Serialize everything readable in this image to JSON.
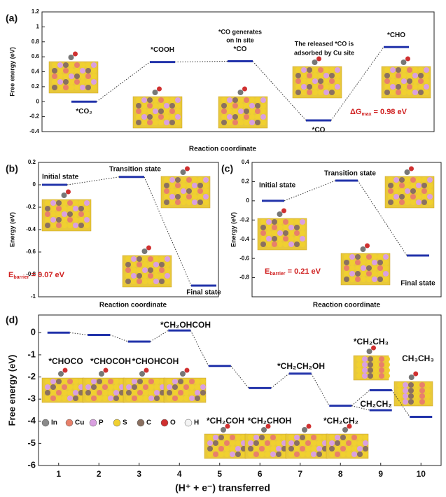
{
  "chart_data": [
    {
      "type": "energy-diagram",
      "panel_label": "(a)",
      "ylabel": "Free energy (eV)",
      "xlabel": "Reaction coordinate",
      "ylim": [
        -0.4,
        1.2
      ],
      "yticks": [
        -0.4,
        -0.2,
        0.0,
        0.2,
        0.4,
        0.6,
        0.8,
        1.0,
        1.2
      ],
      "levels": [
        {
          "value": 0.0,
          "label": "*CO₂"
        },
        {
          "value": 0.53,
          "label": "*COOH"
        },
        {
          "value": 0.54,
          "label": "*CO"
        },
        {
          "value": -0.25,
          "label": "*CO"
        },
        {
          "value": 0.73,
          "label": "*CHO"
        }
      ],
      "annotations": [
        "*CO generates",
        "on In site",
        "The released *CO is",
        "adsorbed by Cu site"
      ],
      "energy_note": {
        "main": "ΔG",
        "sub": "max",
        "rest": " = 0.98 eV"
      }
    },
    {
      "type": "energy-diagram",
      "panel_label": "(b)",
      "ylabel": "Energy (eV)",
      "xlabel": "Reaction coordinate",
      "ylim": [
        -1.0,
        0.2
      ],
      "yticks": [
        -1.0,
        -0.8,
        -0.6,
        -0.4,
        -0.2,
        0.0,
        0.2
      ],
      "levels": [
        {
          "value": 0.0,
          "label": "Initial state"
        },
        {
          "value": 0.07,
          "label": "Transition state"
        },
        {
          "value": -0.9,
          "label": "Final state"
        }
      ],
      "energy_note": {
        "main": "E",
        "sub": "barrier",
        "rest": " = 0.07 eV"
      }
    },
    {
      "type": "energy-diagram",
      "panel_label": "(c)",
      "ylabel": "Energy (eV)",
      "xlabel": "Reaction coordinate",
      "ylim": [
        -1.0,
        0.4
      ],
      "yticks": [
        -0.8,
        -0.6,
        -0.4,
        -0.2,
        0.0,
        0.2,
        0.4
      ],
      "levels": [
        {
          "value": 0.0,
          "label": "Initial state"
        },
        {
          "value": 0.21,
          "label": "Transition state"
        },
        {
          "value": -0.57,
          "label": "Final state"
        }
      ],
      "energy_note": {
        "main": "E",
        "sub": "barrier",
        "rest": " = 0.21 eV"
      }
    },
    {
      "type": "energy-diagram",
      "panel_label": "(d)",
      "ylabel": "Free energy (eV)",
      "xlabel": "(H⁺ + e⁻) transferred",
      "xlim": [
        0.5,
        10.5
      ],
      "xticks": [
        1,
        2,
        3,
        4,
        5,
        6,
        7,
        8,
        9,
        10
      ],
      "ylim": [
        -6,
        0.8
      ],
      "yticks": [
        -6,
        -5,
        -4,
        -3,
        -2,
        -1,
        0
      ],
      "levels": [
        {
          "x": 1,
          "value": 0.0,
          "label": "*CHOCO"
        },
        {
          "x": 2,
          "value": -0.1,
          "label": "*CHOCOH"
        },
        {
          "x": 3,
          "value": -0.4,
          "label": "*CHOHCOH"
        },
        {
          "x": 4,
          "value": 0.1,
          "label": "*CH₂OHCOH"
        },
        {
          "x": 5,
          "value": -1.5,
          "label": "*CH₂COH"
        },
        {
          "x": 6,
          "value": -2.5,
          "label": "*CH₂CHOH"
        },
        {
          "x": 7,
          "value": -1.85,
          "label": "*CH₂CH₂OH"
        },
        {
          "x": 8,
          "value": -3.3,
          "label": "*CH₂CH₂"
        },
        {
          "x": 9,
          "value": -2.6,
          "label": "*CH₂CH₃"
        },
        {
          "x": 9,
          "value": -3.5,
          "label": "CH₂CH₂"
        },
        {
          "x": 10,
          "value": -3.8,
          "label": "CH₃CH₃"
        }
      ],
      "legend": [
        {
          "label": "In",
          "color": "#8a8a8a"
        },
        {
          "label": "Cu",
          "color": "#e8806a"
        },
        {
          "label": "P",
          "color": "#d9a0e0"
        },
        {
          "label": "S",
          "color": "#f0d030"
        },
        {
          "label": "C",
          "color": "#8a7060"
        },
        {
          "label": "O",
          "color": "#d03030"
        },
        {
          "label": "H",
          "color": "#f4f4f4"
        }
      ]
    }
  ]
}
